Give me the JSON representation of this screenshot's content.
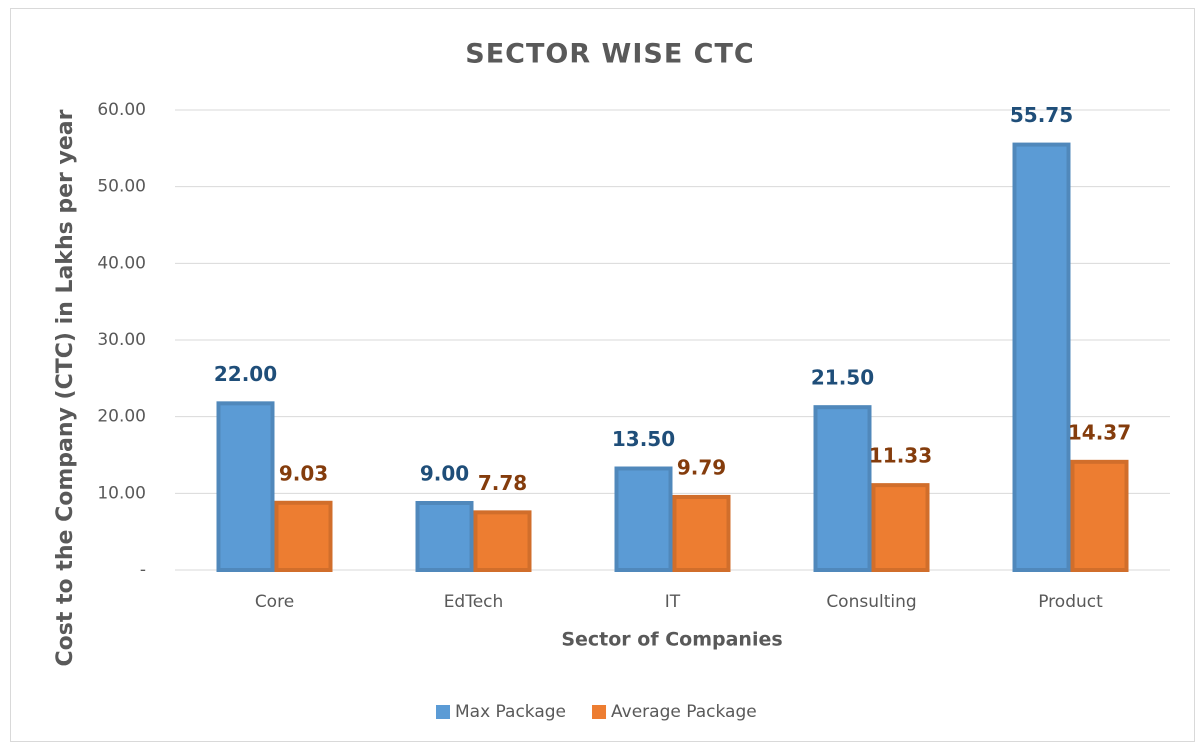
{
  "chart_data": {
    "type": "bar",
    "title": "SECTOR WISE CTC",
    "x_label": "Sector of Companies",
    "y_label": "Cost to the Company (CTC) in Lakhs per year",
    "categories": [
      "Core",
      "EdTech",
      "IT",
      "Consulting",
      "Product"
    ],
    "series": [
      {
        "name": "Max Package",
        "color": "#5b9bd5",
        "label_color": "#1f4e79",
        "values": [
          22,
          9,
          13.5,
          21.5,
          55.75
        ],
        "value_labels": [
          "22.00",
          "9.00",
          "13.50",
          "21.50",
          "55.75"
        ]
      },
      {
        "name": "Average Package",
        "color": "#ed7d31",
        "label_color": "#843c0c",
        "values": [
          9.03,
          7.78,
          9.79,
          11.33,
          14.37
        ],
        "value_labels": [
          "9.03",
          "7.78",
          "9.79",
          "11.33",
          "14.37"
        ]
      }
    ],
    "ylim": [
      0,
      60
    ],
    "yticks": [
      {
        "value": 0,
        "label": "-"
      },
      {
        "value": 10,
        "label": "10.00"
      },
      {
        "value": 20,
        "label": "20.00"
      },
      {
        "value": 30,
        "label": "30.00"
      },
      {
        "value": 40,
        "label": "40.00"
      },
      {
        "value": 50,
        "label": "50.00"
      },
      {
        "value": 60,
        "label": "60.00"
      }
    ],
    "grid": true,
    "legend": "bottom"
  }
}
